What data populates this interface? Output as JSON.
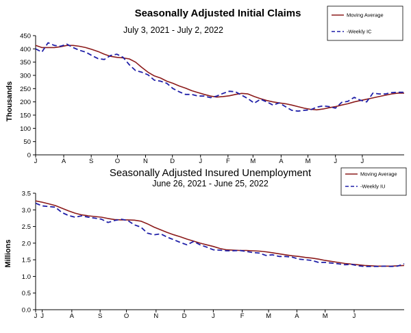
{
  "chart_data": [
    {
      "type": "line",
      "title": "Seasonally Adjusted Initial  Claims",
      "subtitle": "July 3, 2021 - July 2, 2022",
      "ylabel": "Thousands",
      "xlabel": "",
      "ylim": [
        0,
        450
      ],
      "yticks": [
        "0",
        "50",
        "100",
        "150",
        "200",
        "250",
        "300",
        "350",
        "400",
        "450"
      ],
      "xticks": [
        {
          "label": "J",
          "pos": 0
        },
        {
          "label": "A",
          "pos": 4.5
        },
        {
          "label": "S",
          "pos": 8.9
        },
        {
          "label": "O",
          "pos": 13.1
        },
        {
          "label": "N",
          "pos": 17.6
        },
        {
          "label": "D",
          "pos": 21.9
        },
        {
          "label": "J",
          "pos": 26.4
        },
        {
          "label": "F",
          "pos": 30.8
        },
        {
          "label": "M",
          "pos": 34.8
        },
        {
          "label": "A",
          "pos": 39.3
        },
        {
          "label": "M",
          "pos": 43.6
        },
        {
          "label": "J",
          "pos": 48.0
        },
        {
          "label": "J",
          "pos": 52.3
        }
      ],
      "legend": {
        "placement": "top-right",
        "entries": [
          "Moving Average",
          "-Weekly IC"
        ]
      },
      "series": [
        {
          "name": "Moving Average",
          "style": "solid",
          "color": "#8b1a1a",
          "values": [
            413,
            405,
            405,
            405,
            408,
            413,
            413,
            410,
            405,
            398,
            390,
            380,
            372,
            368,
            366,
            362,
            350,
            330,
            312,
            298,
            290,
            278,
            270,
            260,
            252,
            242,
            235,
            228,
            222,
            218,
            220,
            223,
            228,
            232,
            230,
            220,
            212,
            205,
            200,
            196,
            193,
            188,
            182,
            176,
            172,
            170,
            173,
            178,
            182,
            188,
            193,
            200,
            205,
            210,
            215,
            220,
            225,
            230,
            233,
            233
          ]
        },
        {
          "name": "-Weekly IC",
          "style": "dashed",
          "color": "#1f1fa8",
          "values": [
            400,
            388,
            423,
            413,
            410,
            418,
            405,
            395,
            388,
            375,
            363,
            360,
            375,
            380,
            368,
            340,
            318,
            312,
            302,
            282,
            278,
            270,
            250,
            238,
            228,
            228,
            222,
            222,
            216,
            222,
            232,
            240,
            238,
            225,
            212,
            195,
            210,
            200,
            188,
            196,
            182,
            168,
            165,
            168,
            170,
            180,
            185,
            182,
            176,
            198,
            202,
            217,
            206,
            200,
            233,
            230,
            230,
            235,
            236,
            236
          ]
        }
      ]
    },
    {
      "type": "line",
      "title": "Seasonally Adjusted Insured  Unemployment",
      "subtitle": "June 26, 2021 - June 25, 2022",
      "ylabel": "Millions",
      "xlabel": "",
      "ylim": [
        0,
        3.5
      ],
      "yticks": [
        "0.0",
        "0.5",
        "1.0",
        "1.5",
        "2.0",
        "2.5",
        "3.0",
        "3.5"
      ],
      "xticks": [
        {
          "label": "J",
          "pos": 0
        },
        {
          "label": "J",
          "pos": 1.0
        },
        {
          "label": "A",
          "pos": 5.5
        },
        {
          "label": "S",
          "pos": 9.8
        },
        {
          "label": "O",
          "pos": 13.8
        },
        {
          "label": "N",
          "pos": 18.3
        },
        {
          "label": "D",
          "pos": 22.6
        },
        {
          "label": "J",
          "pos": 27.0
        },
        {
          "label": "F",
          "pos": 31.4
        },
        {
          "label": "M",
          "pos": 35.4
        },
        {
          "label": "A",
          "pos": 39.7
        },
        {
          "label": "M",
          "pos": 44.0
        },
        {
          "label": "J",
          "pos": 48.4
        }
      ],
      "legend": {
        "placement": "top-right",
        "entries": [
          "Moving Average",
          "-Weekly IU"
        ]
      },
      "series": [
        {
          "name": "Moving Average",
          "style": "solid",
          "color": "#8b1a1a",
          "values": [
            3.27,
            3.23,
            3.18,
            3.13,
            3.05,
            2.97,
            2.9,
            2.85,
            2.82,
            2.8,
            2.78,
            2.74,
            2.71,
            2.7,
            2.7,
            2.69,
            2.66,
            2.58,
            2.48,
            2.4,
            2.32,
            2.25,
            2.19,
            2.12,
            2.06,
            2.0,
            1.95,
            1.9,
            1.84,
            1.8,
            1.79,
            1.78,
            1.78,
            1.77,
            1.76,
            1.74,
            1.71,
            1.68,
            1.65,
            1.62,
            1.6,
            1.57,
            1.55,
            1.52,
            1.48,
            1.45,
            1.42,
            1.39,
            1.37,
            1.35,
            1.33,
            1.32,
            1.31,
            1.31,
            1.31,
            1.32,
            1.33
          ]
        },
        {
          "name": "-Weekly IU",
          "style": "dashed",
          "color": "#1f1fa8",
          "values": [
            3.2,
            3.12,
            3.1,
            3.08,
            2.92,
            2.83,
            2.78,
            2.82,
            2.78,
            2.75,
            2.72,
            2.62,
            2.68,
            2.72,
            2.68,
            2.55,
            2.48,
            2.3,
            2.25,
            2.28,
            2.18,
            2.1,
            2.02,
            1.95,
            2.05,
            1.95,
            1.88,
            1.8,
            1.79,
            1.77,
            1.77,
            1.78,
            1.75,
            1.72,
            1.7,
            1.63,
            1.65,
            1.6,
            1.6,
            1.58,
            1.52,
            1.5,
            1.48,
            1.42,
            1.42,
            1.4,
            1.38,
            1.35,
            1.36,
            1.32,
            1.3,
            1.3,
            1.3,
            1.31,
            1.3,
            1.31,
            1.38
          ]
        }
      ]
    }
  ]
}
